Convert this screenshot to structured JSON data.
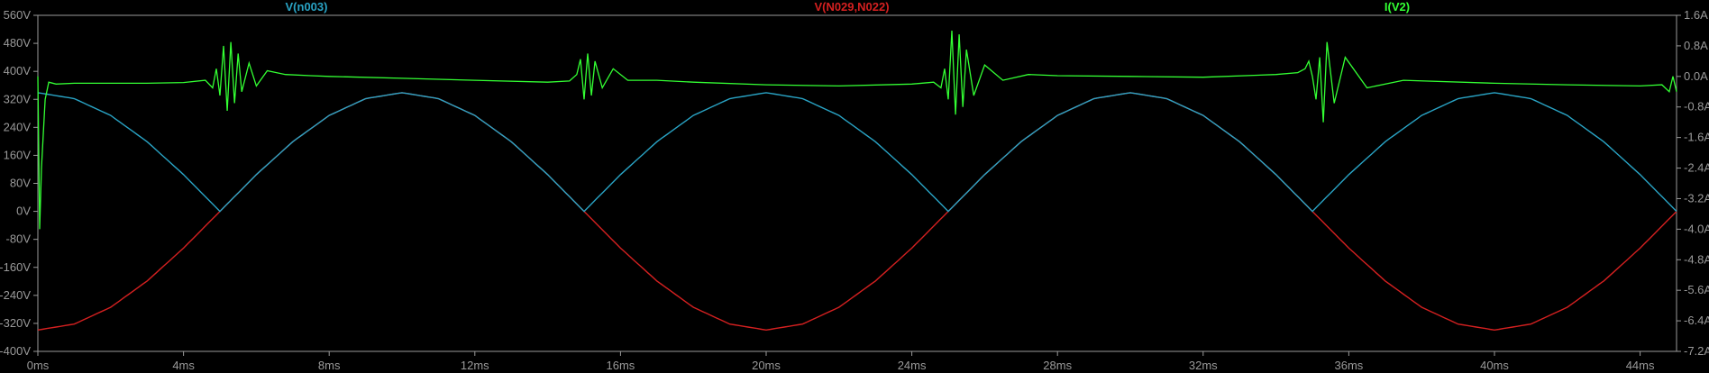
{
  "chart_data": {
    "type": "line",
    "xlabel": "",
    "xlim": [
      0,
      45
    ],
    "x_ticks": [
      "0ms",
      "4ms",
      "8ms",
      "12ms",
      "16ms",
      "20ms",
      "24ms",
      "28ms",
      "32ms",
      "36ms",
      "40ms",
      "44ms"
    ],
    "x_tick_values": [
      0,
      4,
      8,
      12,
      16,
      20,
      24,
      28,
      32,
      36,
      40,
      44
    ],
    "y_left": {
      "lim": [
        -400,
        560
      ],
      "ticks": [
        "560V",
        "480V",
        "400V",
        "320V",
        "240V",
        "160V",
        "80V",
        "0V",
        "-80V",
        "-160V",
        "-240V",
        "-320V",
        "-400V"
      ],
      "tick_values": [
        560,
        480,
        400,
        320,
        240,
        160,
        80,
        0,
        -80,
        -160,
        -240,
        -320,
        -400
      ]
    },
    "y_right": {
      "lim": [
        -7.2,
        1.6
      ],
      "ticks": [
        "1.6A",
        "0.8A",
        "0.0A",
        "-0.8A",
        "-1.6A",
        "-2.4A",
        "-3.2A",
        "-4.0A",
        "-4.8A",
        "-5.6A",
        "-6.4A",
        "-7.2A"
      ],
      "tick_values": [
        1.6,
        0.8,
        0.0,
        -0.8,
        -1.6,
        -2.4,
        -3.2,
        -4.0,
        -4.8,
        -5.6,
        -6.4,
        -7.2
      ]
    },
    "grid": false,
    "series": [
      {
        "name": "V(n003)",
        "color": "#29a3c4",
        "axis": "left",
        "x": [
          0,
          1,
          2,
          3,
          4,
          5,
          6,
          7,
          8,
          9,
          10,
          11,
          12,
          13,
          14,
          15,
          16,
          17,
          18,
          19,
          20,
          21,
          22,
          23,
          24,
          25,
          26,
          27,
          28,
          29,
          30,
          31,
          32,
          33,
          34,
          35,
          36,
          37,
          38,
          39,
          40,
          41,
          42,
          43,
          44,
          45
        ],
        "values": [
          339,
          322,
          274,
          199,
          105,
          0,
          105,
          199,
          274,
          322,
          339,
          322,
          274,
          199,
          105,
          0,
          105,
          199,
          274,
          322,
          339,
          322,
          274,
          199,
          105,
          0,
          105,
          199,
          274,
          322,
          339,
          322,
          274,
          199,
          105,
          0,
          105,
          199,
          274,
          322,
          339,
          322,
          274,
          199,
          105,
          0
        ]
      },
      {
        "name": "V(N029,N022)",
        "color": "#d42020",
        "axis": "left",
        "x": [
          0,
          1,
          2,
          3,
          4,
          5,
          6,
          7,
          8,
          9,
          10,
          11,
          12,
          13,
          14,
          15,
          16,
          17,
          18,
          19,
          20,
          21,
          22,
          23,
          24,
          25,
          26,
          27,
          28,
          29,
          30,
          31,
          32,
          33,
          34,
          35,
          36,
          37,
          38,
          39,
          40,
          41,
          42,
          43,
          44,
          45
        ],
        "values": [
          -339,
          -322,
          -274,
          -199,
          -105,
          0,
          105,
          199,
          274,
          322,
          339,
          322,
          274,
          199,
          105,
          0,
          -105,
          -199,
          -274,
          -322,
          -339,
          -322,
          -274,
          -199,
          -105,
          0,
          105,
          199,
          274,
          322,
          339,
          322,
          274,
          199,
          105,
          0,
          -105,
          -199,
          -274,
          -322,
          -339,
          -322,
          -274,
          -199,
          -105,
          0
        ]
      },
      {
        "name": "I(V2)",
        "color": "#33ff33",
        "axis": "right",
        "x": [
          0,
          0.05,
          0.1,
          0.2,
          0.3,
          0.5,
          1,
          2,
          3,
          4,
          4.6,
          4.8,
          4.9,
          5.0,
          5.1,
          5.2,
          5.3,
          5.4,
          5.5,
          5.6,
          5.8,
          6.0,
          6.3,
          6.8,
          7.5,
          8,
          10,
          12,
          14,
          14.6,
          14.8,
          14.9,
          15.0,
          15.1,
          15.2,
          15.3,
          15.5,
          15.8,
          16.2,
          17,
          18,
          20,
          22,
          24,
          24.6,
          24.8,
          24.9,
          25.0,
          25.1,
          25.2,
          25.3,
          25.4,
          25.5,
          25.7,
          26.0,
          26.5,
          27.2,
          28,
          30,
          32,
          34,
          34.6,
          34.8,
          34.9,
          35.0,
          35.1,
          35.2,
          35.3,
          35.4,
          35.6,
          35.9,
          36.5,
          37.5,
          40,
          42,
          44,
          44.6,
          44.8,
          44.9,
          45
        ],
        "values": [
          0.0,
          -4.0,
          -2.4,
          -0.6,
          -0.15,
          -0.2,
          -0.18,
          -0.18,
          -0.18,
          -0.16,
          -0.1,
          -0.3,
          0.2,
          -0.5,
          0.8,
          -0.9,
          0.9,
          -0.7,
          0.6,
          -0.4,
          0.35,
          -0.25,
          0.15,
          0.05,
          0.02,
          0.0,
          -0.05,
          -0.1,
          -0.15,
          -0.12,
          0.05,
          0.45,
          -0.6,
          0.6,
          -0.5,
          0.4,
          -0.3,
          0.2,
          -0.1,
          -0.1,
          -0.15,
          -0.22,
          -0.25,
          -0.2,
          -0.15,
          -0.3,
          0.2,
          -0.6,
          1.2,
          -1.0,
          1.1,
          -0.8,
          0.7,
          -0.5,
          0.3,
          -0.1,
          0.05,
          0.02,
          0.0,
          -0.02,
          0.05,
          0.1,
          0.2,
          0.4,
          0.0,
          -0.6,
          0.5,
          -1.2,
          0.9,
          -0.7,
          0.5,
          -0.3,
          -0.1,
          -0.18,
          -0.22,
          -0.25,
          -0.22,
          -0.4,
          0.0,
          -0.4
        ]
      }
    ]
  }
}
